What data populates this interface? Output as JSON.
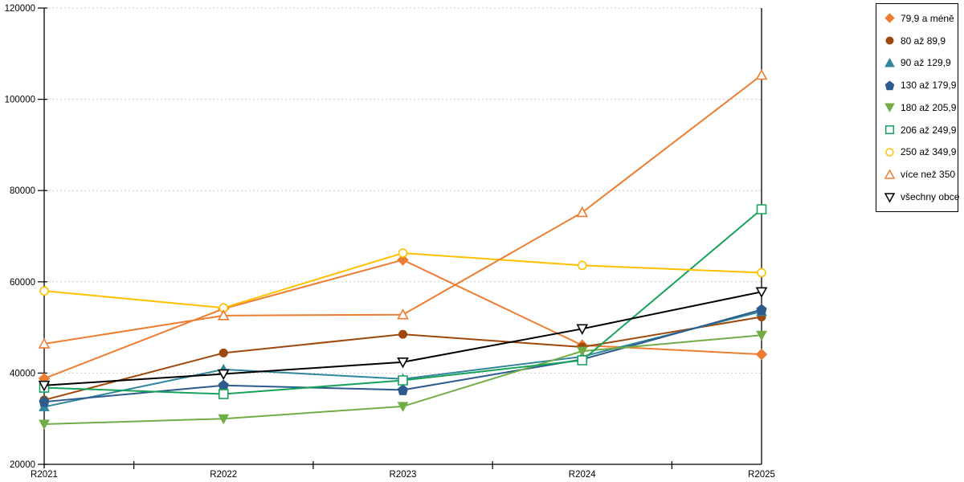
{
  "chart_data": {
    "type": "line",
    "title": "",
    "xlabel": "",
    "ylabel": "",
    "categories": [
      "R2021",
      "R2022",
      "R2023",
      "R2024",
      "R2025"
    ],
    "y_axis": {
      "min": 20000,
      "max": 120000,
      "step": 20000,
      "tick_labels": [
        "20000",
        "40000",
        "60000",
        "80000",
        "100000",
        "120000"
      ]
    },
    "grid": "horizontal-dashed",
    "grid_color": "#c9c9c9",
    "axis_color": "#000000",
    "legend_position": "right",
    "series": [
      {
        "name": "79,9 a méně",
        "color": "#ED7D31",
        "marker": "diamond",
        "fill": "solid",
        "values": [
          38800,
          54100,
          64800,
          46100,
          44100
        ]
      },
      {
        "name": "80 až 89,9",
        "color": "#9E480E",
        "marker": "circle",
        "fill": "solid",
        "values": [
          34100,
          44400,
          48500,
          45700,
          52300
        ]
      },
      {
        "name": "90 až 129,9",
        "color": "#31869B",
        "marker": "triangle-up",
        "fill": "solid",
        "values": [
          32600,
          40800,
          38700,
          43600,
          53500
        ]
      },
      {
        "name": "130 až 179,9",
        "color": "#2D5B8E",
        "marker": "pentagon",
        "fill": "solid",
        "values": [
          33700,
          37300,
          36300,
          43000,
          53900
        ]
      },
      {
        "name": "180 až 205,9",
        "color": "#70AD47",
        "marker": "triangle-down",
        "fill": "solid",
        "values": [
          28800,
          30000,
          32700,
          44800,
          48300
        ]
      },
      {
        "name": "206 až 249,9",
        "color": "#17A25B",
        "marker": "square",
        "fill": "open",
        "values": [
          36800,
          35400,
          38400,
          42800,
          75900
        ]
      },
      {
        "name": "250 až 349,9",
        "color": "#FFC000",
        "marker": "circle",
        "fill": "open",
        "values": [
          58000,
          54300,
          66300,
          63600,
          62000
        ]
      },
      {
        "name": "více než 350",
        "color": "#ED7D31",
        "marker": "triangle-up",
        "fill": "open",
        "values": [
          46400,
          52600,
          52800,
          75200,
          105300
        ]
      },
      {
        "name": "všechny obce",
        "color": "#000000",
        "marker": "triangle-down",
        "fill": "open",
        "values": [
          37300,
          39800,
          42400,
          49700,
          57800
        ]
      }
    ]
  }
}
